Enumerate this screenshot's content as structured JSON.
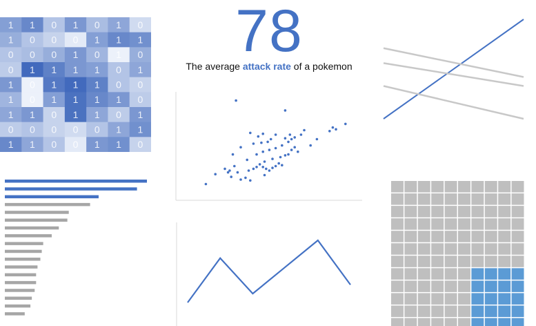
{
  "stat": {
    "value": "78",
    "caption_before": "The average ",
    "caption_highlight": "attack rate",
    "caption_after": " of a pokemon"
  },
  "colors": {
    "accent": "#4472c4",
    "grey": "#a6a6a6",
    "light_grey": "#c8c8c8",
    "waffle_grey": "#bfbfbf",
    "waffle_blue": "#5b9bd5"
  },
  "chart_data": [
    {
      "type": "heatmap",
      "rows": [
        [
          1,
          1,
          0,
          1,
          0,
          1,
          0
        ],
        [
          1,
          0,
          0,
          0,
          1,
          1,
          1
        ],
        [
          0,
          0,
          0,
          1,
          0,
          1,
          0
        ],
        [
          0,
          1,
          1,
          1,
          1,
          0,
          1
        ],
        [
          1,
          0,
          1,
          1,
          1,
          0,
          0
        ],
        [
          1,
          0,
          1,
          1,
          1,
          1,
          0
        ],
        [
          1,
          1,
          0,
          1,
          1,
          0,
          1
        ],
        [
          0,
          0,
          0,
          0,
          0,
          1,
          1
        ],
        [
          1,
          1,
          0,
          0,
          1,
          1,
          0
        ]
      ],
      "intensity": [
        [
          0.55,
          0.7,
          0.3,
          0.6,
          0.35,
          0.5,
          0.15
        ],
        [
          0.45,
          0.3,
          0.2,
          0.05,
          0.55,
          0.7,
          0.65
        ],
        [
          0.3,
          0.35,
          0.45,
          0.6,
          0.4,
          0.0,
          0.45
        ],
        [
          0.25,
          0.9,
          0.75,
          0.6,
          0.55,
          0.3,
          0.5
        ],
        [
          0.6,
          0.0,
          0.8,
          0.9,
          0.75,
          0.3,
          0.2
        ],
        [
          0.4,
          0.0,
          0.55,
          0.85,
          0.7,
          0.6,
          0.25
        ],
        [
          0.5,
          0.6,
          0.2,
          0.85,
          0.5,
          0.25,
          0.6
        ],
        [
          0.25,
          0.3,
          0.2,
          0.15,
          0.3,
          0.5,
          0.65
        ],
        [
          0.7,
          0.5,
          0.3,
          0.05,
          0.6,
          0.65,
          0.2
        ]
      ]
    },
    {
      "type": "line",
      "title": "",
      "series": [
        {
          "emphasis": true,
          "start": 0,
          "end": 100
        },
        {
          "emphasis": false,
          "start": 71,
          "end": 42
        },
        {
          "emphasis": false,
          "start": 56,
          "end": 33
        },
        {
          "emphasis": false,
          "start": 33,
          "end": 0
        }
      ]
    },
    {
      "type": "scatter",
      "points": [
        [
          8,
          5
        ],
        [
          14,
          16
        ],
        [
          22,
          18
        ],
        [
          23,
          20
        ],
        [
          26,
          25
        ],
        [
          20,
          22
        ],
        [
          24,
          13
        ],
        [
          30,
          10
        ],
        [
          33,
          12
        ],
        [
          28,
          18
        ],
        [
          35,
          20
        ],
        [
          38,
          22
        ],
        [
          40,
          24
        ],
        [
          44,
          24
        ],
        [
          46,
          22
        ],
        [
          48,
          20
        ],
        [
          50,
          23
        ],
        [
          52,
          25
        ],
        [
          54,
          28
        ],
        [
          56,
          26
        ],
        [
          45,
          30
        ],
        [
          50,
          33
        ],
        [
          55,
          35
        ],
        [
          58,
          37
        ],
        [
          60,
          38
        ],
        [
          62,
          43
        ],
        [
          64,
          46
        ],
        [
          66,
          41
        ],
        [
          40,
          38
        ],
        [
          44,
          41
        ],
        [
          48,
          43
        ],
        [
          52,
          45
        ],
        [
          56,
          48
        ],
        [
          58,
          56
        ],
        [
          61,
          60
        ],
        [
          64,
          57
        ],
        [
          68,
          60
        ],
        [
          70,
          65
        ],
        [
          38,
          50
        ],
        [
          43,
          51
        ],
        [
          47,
          52
        ],
        [
          49,
          55
        ],
        [
          41,
          58
        ],
        [
          44,
          61
        ],
        [
          52,
          60
        ],
        [
          36,
          62
        ],
        [
          60,
          52
        ],
        [
          62,
          55
        ],
        [
          74,
          48
        ],
        [
          78,
          55
        ],
        [
          86,
          64
        ],
        [
          88,
          68
        ],
        [
          90,
          66
        ],
        [
          96,
          72
        ],
        [
          27,
          98
        ],
        [
          58,
          87
        ],
        [
          25,
          38
        ],
        [
          30,
          46
        ],
        [
          34,
          32
        ],
        [
          42,
          27
        ],
        [
          45,
          15
        ],
        [
          36,
          9
        ]
      ]
    },
    {
      "type": "bar",
      "orientation": "horizontal",
      "values": [
        100,
        93,
        66,
        60,
        45,
        44,
        38,
        33,
        27,
        26,
        25,
        23,
        22,
        22,
        21,
        19,
        18,
        14
      ],
      "highlight_count": 3
    },
    {
      "type": "line",
      "values": [
        10,
        35,
        15,
        30,
        45,
        20
      ]
    },
    {
      "type": "waffle",
      "columns": 10,
      "rows": 12,
      "highlight": {
        "col_start": 6,
        "col_end": 9,
        "row_start": 7,
        "row_end": 11
      }
    }
  ]
}
